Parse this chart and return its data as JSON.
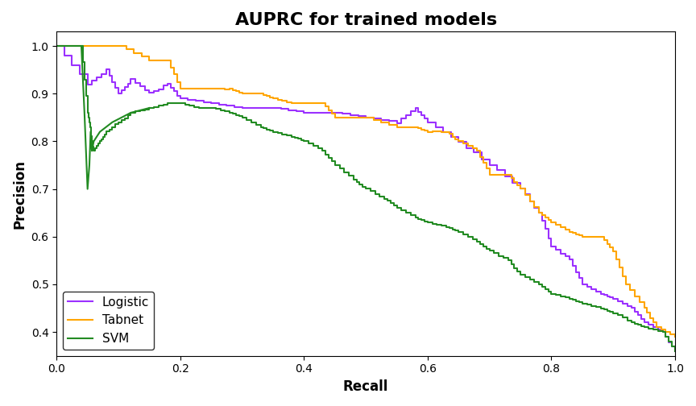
{
  "title": "AUPRC for trained models",
  "xlabel": "Recall",
  "ylabel": "Precision",
  "xlim": [
    0.0,
    1.0
  ],
  "ylim": [
    0.35,
    1.03
  ],
  "title_fontsize": 16,
  "label_fontsize": 12,
  "colors": {
    "logistic": "#9B30FF",
    "tabnet": "#FFA500",
    "svm": "#228B22"
  },
  "legend_labels": [
    "Logistic",
    "Tabnet",
    "SVM"
  ],
  "figsize": [
    8.64,
    5.04
  ],
  "dpi": 100
}
